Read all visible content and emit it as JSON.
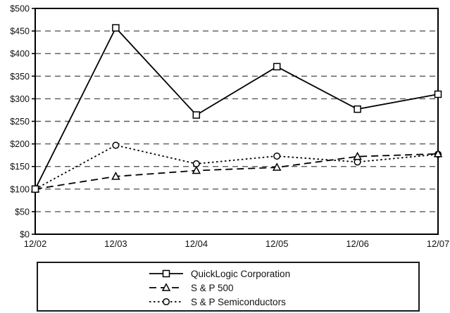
{
  "chart_data": {
    "type": "line",
    "title": "",
    "xlabel": "",
    "ylabel": "",
    "x_categories": [
      "12/02",
      "12/03",
      "12/04",
      "12/05",
      "12/06",
      "12/07"
    ],
    "y_tick_labels": [
      "$0",
      "$50",
      "$100",
      "$150",
      "$200",
      "$250",
      "$300",
      "$350",
      "$400",
      "$450",
      "$500"
    ],
    "ylim": [
      0,
      500
    ],
    "ytick_step": 50,
    "grid": "horizontal-dashed",
    "legend_position": "bottom-box",
    "series": [
      {
        "name": "QuickLogic Corporation",
        "line_style": "solid",
        "marker": "square",
        "values": [
          100,
          457,
          264,
          371,
          277,
          310
        ]
      },
      {
        "name": "S & P 500",
        "line_style": "dashed",
        "marker": "triangle",
        "values": [
          100,
          128,
          141,
          148,
          172,
          178
        ]
      },
      {
        "name": "S & P Semiconductors",
        "line_style": "dotted",
        "marker": "circle",
        "values": [
          100,
          197,
          156,
          173,
          160,
          177
        ]
      }
    ],
    "colors": {
      "series_line": "#000000",
      "marker_fill": "#ffffff",
      "gridline": "#595959",
      "axis_box": "#000000",
      "background": "#ffffff",
      "text": "#111111"
    }
  }
}
